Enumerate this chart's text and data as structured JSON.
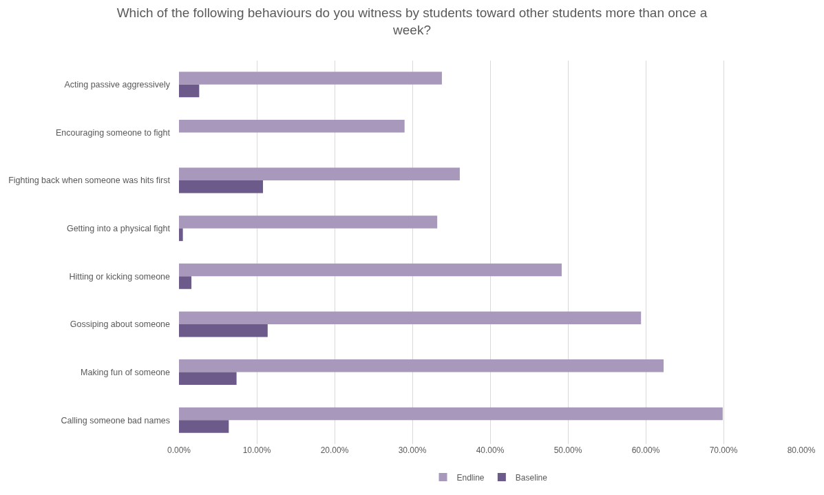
{
  "chart_data": {
    "type": "bar",
    "orientation": "horizontal",
    "title": "Which of the following behaviours do you witness by students toward other students more than once a week?",
    "categories": [
      "Acting passive aggressively",
      "Encouraging someone to fight",
      "Fighting back when someone was hits first",
      "Getting into a physical fight",
      "Hitting or kicking someone",
      "Gossiping about someone",
      "Making fun of someone",
      "Calling someone bad names"
    ],
    "series": [
      {
        "name": "Endline",
        "color": "#a899bc",
        "values": [
          33.8,
          29.0,
          36.1,
          33.2,
          49.2,
          59.4,
          62.3,
          69.9
        ]
      },
      {
        "name": "Baseline",
        "color": "#6c5a8a",
        "values": [
          2.6,
          0,
          10.8,
          0.5,
          1.6,
          11.4,
          7.4,
          6.4
        ]
      }
    ],
    "xlim": [
      0,
      80
    ],
    "xticks": [
      {
        "value": 0,
        "label": "0.00%"
      },
      {
        "value": 10,
        "label": "10.00%"
      },
      {
        "value": 20,
        "label": "20.00%"
      },
      {
        "value": 30,
        "label": "30.00%"
      },
      {
        "value": 40,
        "label": "40.00%"
      },
      {
        "value": 50,
        "label": "50.00%"
      },
      {
        "value": 60,
        "label": "60.00%"
      },
      {
        "value": 70,
        "label": "70.00%"
      },
      {
        "value": 80,
        "label": "80.00%"
      }
    ],
    "grid": "x",
    "legend": "bottom"
  }
}
